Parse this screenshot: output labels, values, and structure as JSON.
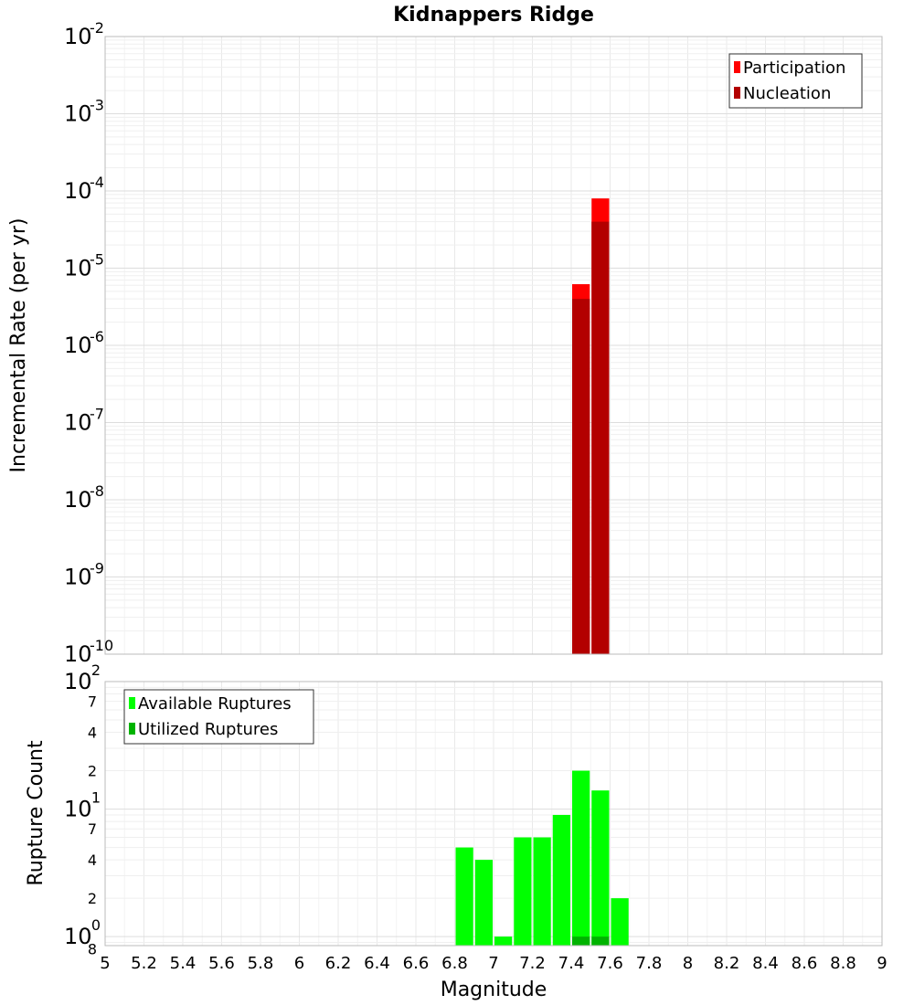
{
  "chart_data": [
    {
      "type": "bar",
      "title": "Kidnappers Ridge",
      "xlabel": "",
      "ylabel": "Incremental Rate (per yr)",
      "xlim": [
        5,
        9
      ],
      "ylim": [
        1e-10,
        0.01
      ],
      "yscale": "log",
      "bin_width": 0.1,
      "legend": {
        "position": "top-right",
        "entries": [
          {
            "name": "Participation",
            "color": "#ff0000"
          },
          {
            "name": "Nucleation",
            "color": "#b30000"
          }
        ]
      },
      "series": [
        {
          "name": "Participation",
          "color": "#ff0000",
          "x": [
            7.45,
            7.55
          ],
          "values": [
            6.2e-06,
            8e-05
          ]
        },
        {
          "name": "Nucleation",
          "color": "#b30000",
          "x": [
            7.45,
            7.55
          ],
          "values": [
            4e-06,
            4e-05
          ]
        }
      ],
      "y_major_ticks": [
        {
          "value": 1e-10,
          "base": "10",
          "exp": "-10"
        },
        {
          "value": 1e-09,
          "base": "10",
          "exp": "-9"
        },
        {
          "value": 1e-08,
          "base": "10",
          "exp": "-8"
        },
        {
          "value": 1e-07,
          "base": "10",
          "exp": "-7"
        },
        {
          "value": 1e-06,
          "base": "10",
          "exp": "-6"
        },
        {
          "value": 1e-05,
          "base": "10",
          "exp": "-5"
        },
        {
          "value": 0.0001,
          "base": "10",
          "exp": "-4"
        },
        {
          "value": 0.001,
          "base": "10",
          "exp": "-3"
        },
        {
          "value": 0.01,
          "base": "10",
          "exp": "-2"
        }
      ],
      "grid": true
    },
    {
      "type": "bar",
      "title": "",
      "xlabel": "Magnitude",
      "ylabel": "Rupture Count",
      "xlim": [
        5,
        9
      ],
      "ylim": [
        0.85,
        100
      ],
      "yscale": "log",
      "bin_width": 0.1,
      "legend": {
        "position": "top-left",
        "entries": [
          {
            "name": "Available Ruptures",
            "color": "#00ff00"
          },
          {
            "name": "Utilized Ruptures",
            "color": "#00b300"
          }
        ]
      },
      "series": [
        {
          "name": "Available Ruptures",
          "color": "#00ff00",
          "x": [
            6.85,
            6.95,
            7.05,
            7.15,
            7.25,
            7.35,
            7.45,
            7.55,
            7.65
          ],
          "values": [
            5,
            4,
            1,
            6,
            6,
            9,
            20,
            14,
            2
          ]
        },
        {
          "name": "Utilized Ruptures",
          "color": "#00b300",
          "x": [
            7.45,
            7.55
          ],
          "values": [
            1,
            1
          ]
        }
      ],
      "y_major_ticks": [
        {
          "value": 1,
          "base": "10",
          "exp": "0"
        },
        {
          "value": 10,
          "base": "10",
          "exp": "1"
        },
        {
          "value": 100,
          "base": "10",
          "exp": "2"
        }
      ],
      "y_minor_ticks": [
        {
          "value": 0.8,
          "label": "8"
        },
        {
          "value": 2,
          "label": "2"
        },
        {
          "value": 4,
          "label": "4"
        },
        {
          "value": 7,
          "label": "7"
        },
        {
          "value": 20,
          "label": "2"
        },
        {
          "value": 40,
          "label": "4"
        },
        {
          "value": 70,
          "label": "7"
        }
      ],
      "x_ticks": [
        "5",
        "5.2",
        "5.4",
        "5.6",
        "5.8",
        "6",
        "6.2",
        "6.4",
        "6.6",
        "6.8",
        "7",
        "7.2",
        "7.4",
        "7.6",
        "7.8",
        "8",
        "8.2",
        "8.4",
        "8.6",
        "8.8",
        "9"
      ],
      "grid": true
    }
  ]
}
